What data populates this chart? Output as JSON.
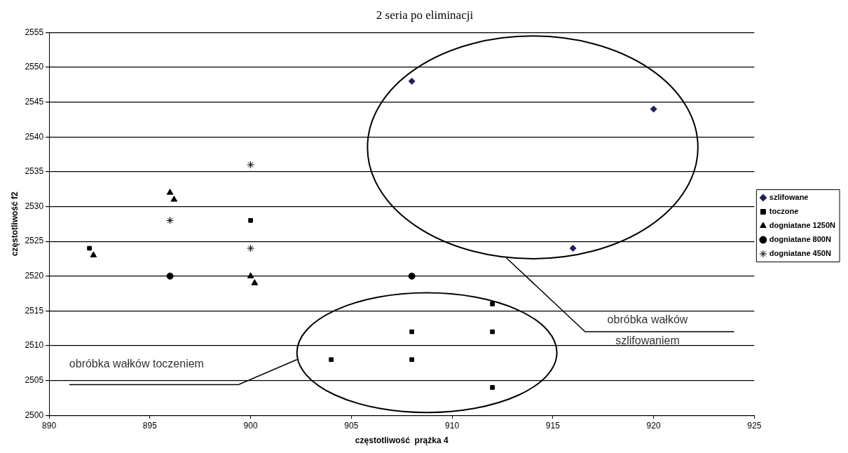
{
  "chart_data": {
    "type": "scatter",
    "title": "2 seria po eliminacji",
    "xlabel": "częstotliwość  prążka 4",
    "ylabel": "częstotliwość f2",
    "xlim": [
      890,
      925
    ],
    "xticks": [
      890,
      895,
      900,
      905,
      910,
      915,
      920,
      925
    ],
    "ylim": [
      2500,
      2555
    ],
    "yticks": [
      2500,
      2505,
      2510,
      2515,
      2520,
      2525,
      2530,
      2535,
      2540,
      2545,
      2550,
      2555
    ],
    "grid": "y",
    "legend": "right",
    "series": [
      {
        "name": "szlifowane",
        "color": "#1f1f5a",
        "marker": "diamond",
        "x": [
          908,
          920,
          916
        ],
        "values": [
          2548,
          2544,
          2524
        ]
      },
      {
        "name": "toczone",
        "color": "#000000",
        "marker": "square",
        "x": [
          892,
          900,
          904,
          908,
          908,
          912,
          912,
          912
        ],
        "values": [
          2524,
          2528,
          2508,
          2512,
          2508,
          2516,
          2512,
          2504
        ]
      },
      {
        "name": "dogniatane 1250N",
        "color": "#000000",
        "marker": "triangle",
        "x": [
          896,
          896.2,
          892.2,
          900,
          900.2
        ],
        "values": [
          2532,
          2531,
          2523,
          2520,
          2519
        ]
      },
      {
        "name": "dogniatane 800N",
        "color": "#000000",
        "marker": "circle",
        "x": [
          896,
          908
        ],
        "values": [
          2520,
          2520
        ]
      },
      {
        "name": "dogniatane 450N",
        "color": "#000000",
        "marker": "cross",
        "x": [
          896,
          900,
          900
        ],
        "values": [
          2528,
          2536,
          2524
        ]
      }
    ],
    "annotations": [
      "obróbka wałków toczeniem",
      "obróbka wałków szlifowaniem"
    ]
  }
}
